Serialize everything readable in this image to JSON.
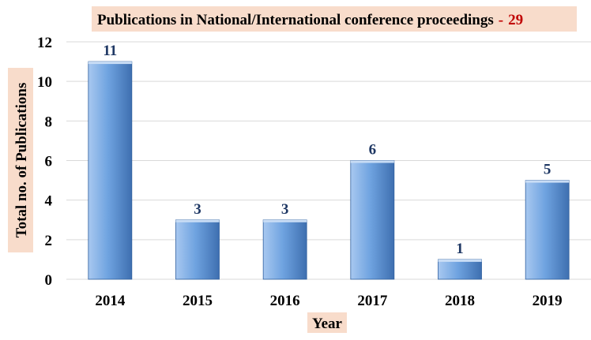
{
  "chart_data": {
    "type": "bar",
    "title": "Publications in National/International  conference proceedings",
    "title_separator": "-",
    "title_total": "29",
    "xlabel": "Year",
    "ylabel": "Total no. of Publications",
    "categories": [
      "2014",
      "2015",
      "2016",
      "2017",
      "2018",
      "2019"
    ],
    "values": [
      11,
      3,
      3,
      6,
      1,
      5
    ],
    "data_labels": [
      "11",
      "3",
      "3",
      "6",
      "1",
      "5"
    ],
    "ylim": [
      0,
      12
    ],
    "yticks": [
      0,
      2,
      4,
      6,
      8,
      10,
      12
    ],
    "ytick_labels": [
      "0",
      "2",
      "4",
      "6",
      "8",
      "10",
      "12"
    ],
    "grid": true,
    "legend": "none",
    "colors": {
      "bar_light": "#a8c8f0",
      "bar_mid": "#6fa3e0",
      "bar_dark": "#3e6fb0",
      "label_bg": "#f8dccb",
      "value_label": "#1f3864",
      "title_total": "#c00000",
      "grid": "#d9d9d9",
      "text": "#000000"
    }
  }
}
